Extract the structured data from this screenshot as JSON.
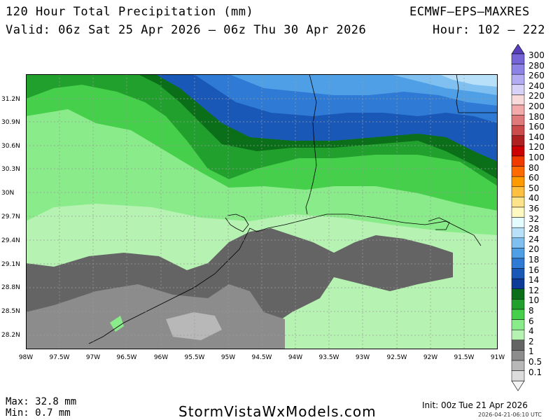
{
  "header": {
    "title": "120 Hour Total Precipitation (mm)",
    "valid": "Valid: 06z Sat 25 Apr 2026 — 06z Thu 30 Apr 2026",
    "model": "ECMWF—EPS—MAXRES",
    "hours": "Hour: 102 — 222"
  },
  "map": {
    "lat_labels": [
      "31.2N",
      "30.9N",
      "30.6N",
      "30.3N",
      "30N",
      "29.7N",
      "29.4N",
      "29.1N",
      "28.8N",
      "28.5N",
      "28.2N"
    ],
    "lon_labels": [
      "98W",
      "97.5W",
      "97W",
      "96.5W",
      "96W",
      "95.5W",
      "95W",
      "94.5W",
      "94W",
      "93.5W",
      "93W",
      "92.5W",
      "92W",
      "91.5W",
      "91W"
    ]
  },
  "legend": {
    "levels": [
      "300",
      "280",
      "260",
      "240",
      "220",
      "200",
      "180",
      "160",
      "140",
      "120",
      "100",
      "80",
      "60",
      "50",
      "40",
      "36",
      "32",
      "28",
      "24",
      "20",
      "18",
      "16",
      "14",
      "12",
      "10",
      "8",
      "6",
      "4",
      "2",
      "1",
      "0.5",
      "0.1"
    ],
    "colors": [
      "#5a3fbd",
      "#7565d8",
      "#8d82e6",
      "#b3acf2",
      "#d7d2f8",
      "#f8dada",
      "#f2aaaa",
      "#e07a7a",
      "#cc4c4c",
      "#b02020",
      "#cc0000",
      "#f03a00",
      "#ff6a00",
      "#ff9a00",
      "#ffc040",
      "#ffe38a",
      "#fff8c0",
      "#e4fbff",
      "#b8e0f8",
      "#7fc0f0",
      "#4f9fe6",
      "#2e7ad4",
      "#1a58b8",
      "#0d3c98",
      "#0a6f18",
      "#22a02e",
      "#46cf4a",
      "#8aeb8a",
      "#b6f3b2",
      "#646464",
      "#8c8c8c",
      "#b8b8b8",
      "#dcdcdc",
      "#f2f2f2"
    ]
  },
  "footer": {
    "max": "Max: 32.8 mm",
    "min": "Min: 0.7 mm",
    "site": "StormVistaWxModels.com",
    "init": "Init: 00z Tue 21 Apr 2026",
    "stamp": "2026-04-21-06:10 UTC"
  }
}
